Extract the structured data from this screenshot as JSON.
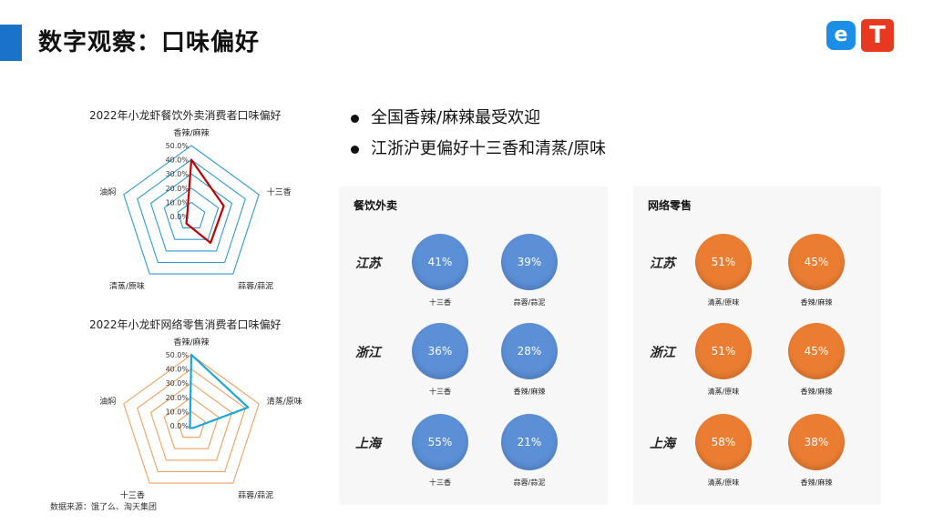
{
  "page_title": "数字观察：口味偏好",
  "logos": {
    "eleme": "e",
    "taotian": "T"
  },
  "bullets": [
    "全国香辣/麻辣最受欢迎",
    "江浙沪更偏好十三香和清蒸/原味"
  ],
  "source": "数据来源：饿了么、淘天集团",
  "colors": {
    "accent_blue": "#1a73c8",
    "radar1_grid": "#2e9ad0",
    "radar1_series": "#c00000",
    "radar2_grid": "#f0a060",
    "radar2_series": "#1aa6d8",
    "bubble_blue": "#5b8fd6",
    "bubble_orange": "#ea7d32"
  },
  "chart_data": [
    {
      "type": "radar",
      "title": "2022年小龙虾餐饮外卖消费者口味偏好",
      "axes": [
        "香辣/麻辣",
        "十三香",
        "蒜蓉/蒜泥",
        "清蒸/原味",
        "油焖"
      ],
      "scale_labels": [
        "50.0%",
        "40.0%",
        "30.0%",
        "20.0%",
        "10.0%",
        "0.0%"
      ],
      "range": [
        0,
        50
      ],
      "values": [
        40,
        24,
        23,
        6,
        3
      ]
    },
    {
      "type": "radar",
      "title": "2022年小龙虾网络零售消费者口味偏好",
      "axes": [
        "香辣/麻辣",
        "清蒸/原味",
        "蒜蓉/蒜泥",
        "十三香",
        "油焖"
      ],
      "scale_labels": [
        "50.0%",
        "40.0%",
        "30.0%",
        "20.0%",
        "10.0%",
        "0.0%"
      ],
      "range": [
        0,
        50
      ],
      "values": [
        50,
        42,
        2,
        2,
        1
      ]
    }
  ],
  "takeout": {
    "title": "餐饮外卖",
    "rows": [
      {
        "province": "江苏",
        "items": [
          {
            "value": "41%",
            "label": "十三香"
          },
          {
            "value": "39%",
            "label": "蒜蓉/蒜泥"
          }
        ]
      },
      {
        "province": "浙江",
        "items": [
          {
            "value": "36%",
            "label": "十三香"
          },
          {
            "value": "28%",
            "label": "香辣/麻辣"
          }
        ]
      },
      {
        "province": "上海",
        "items": [
          {
            "value": "55%",
            "label": "十三香"
          },
          {
            "value": "21%",
            "label": "蒜蓉/蒜泥"
          }
        ]
      }
    ]
  },
  "retail": {
    "title": "网络零售",
    "rows": [
      {
        "province": "江苏",
        "items": [
          {
            "value": "51%",
            "label": "清蒸/原味"
          },
          {
            "value": "45%",
            "label": "香辣/麻辣"
          }
        ]
      },
      {
        "province": "浙江",
        "items": [
          {
            "value": "51%",
            "label": "清蒸/原味"
          },
          {
            "value": "45%",
            "label": "香辣/麻辣"
          }
        ]
      },
      {
        "province": "上海",
        "items": [
          {
            "value": "58%",
            "label": "清蒸/原味"
          },
          {
            "value": "38%",
            "label": "香辣/麻辣"
          }
        ]
      }
    ]
  }
}
